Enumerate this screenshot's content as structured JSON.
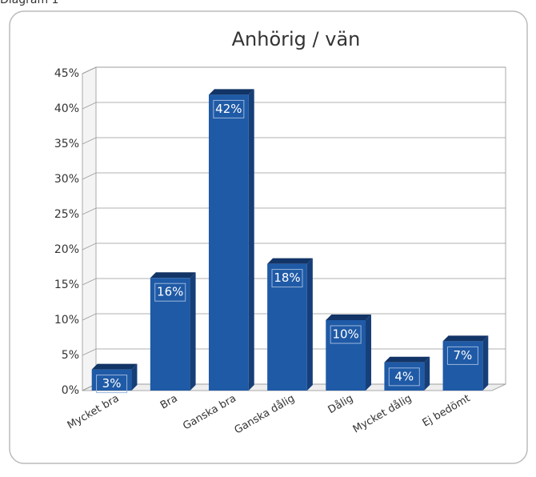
{
  "caption": "Diagram 1",
  "chart_data": {
    "type": "bar3d",
    "title": "Anhörig / vän",
    "categories": [
      "Mycket bra",
      "Bra",
      "Ganska bra",
      "Ganska dålig",
      "Dålig",
      "Mycket dålig",
      "Ej bedömt"
    ],
    "values": [
      3,
      16,
      42,
      18,
      10,
      4,
      7
    ],
    "value_labels": [
      "3%",
      "16%",
      "42%",
      "18%",
      "10%",
      "4%",
      "7%"
    ],
    "color": "#1f5aa6",
    "ylim": [
      0,
      45
    ],
    "yticks": [
      {
        "value": 0,
        "label": "0%"
      },
      {
        "value": 5,
        "label": "5%"
      },
      {
        "value": 10,
        "label": "10%"
      },
      {
        "value": 15,
        "label": "15%"
      },
      {
        "value": 20,
        "label": "20%"
      },
      {
        "value": 25,
        "label": "25%"
      },
      {
        "value": 30,
        "label": "30%"
      },
      {
        "value": 35,
        "label": "35%"
      },
      {
        "value": 40,
        "label": "40%"
      },
      {
        "value": 45,
        "label": "45%"
      }
    ],
    "grid": true
  }
}
